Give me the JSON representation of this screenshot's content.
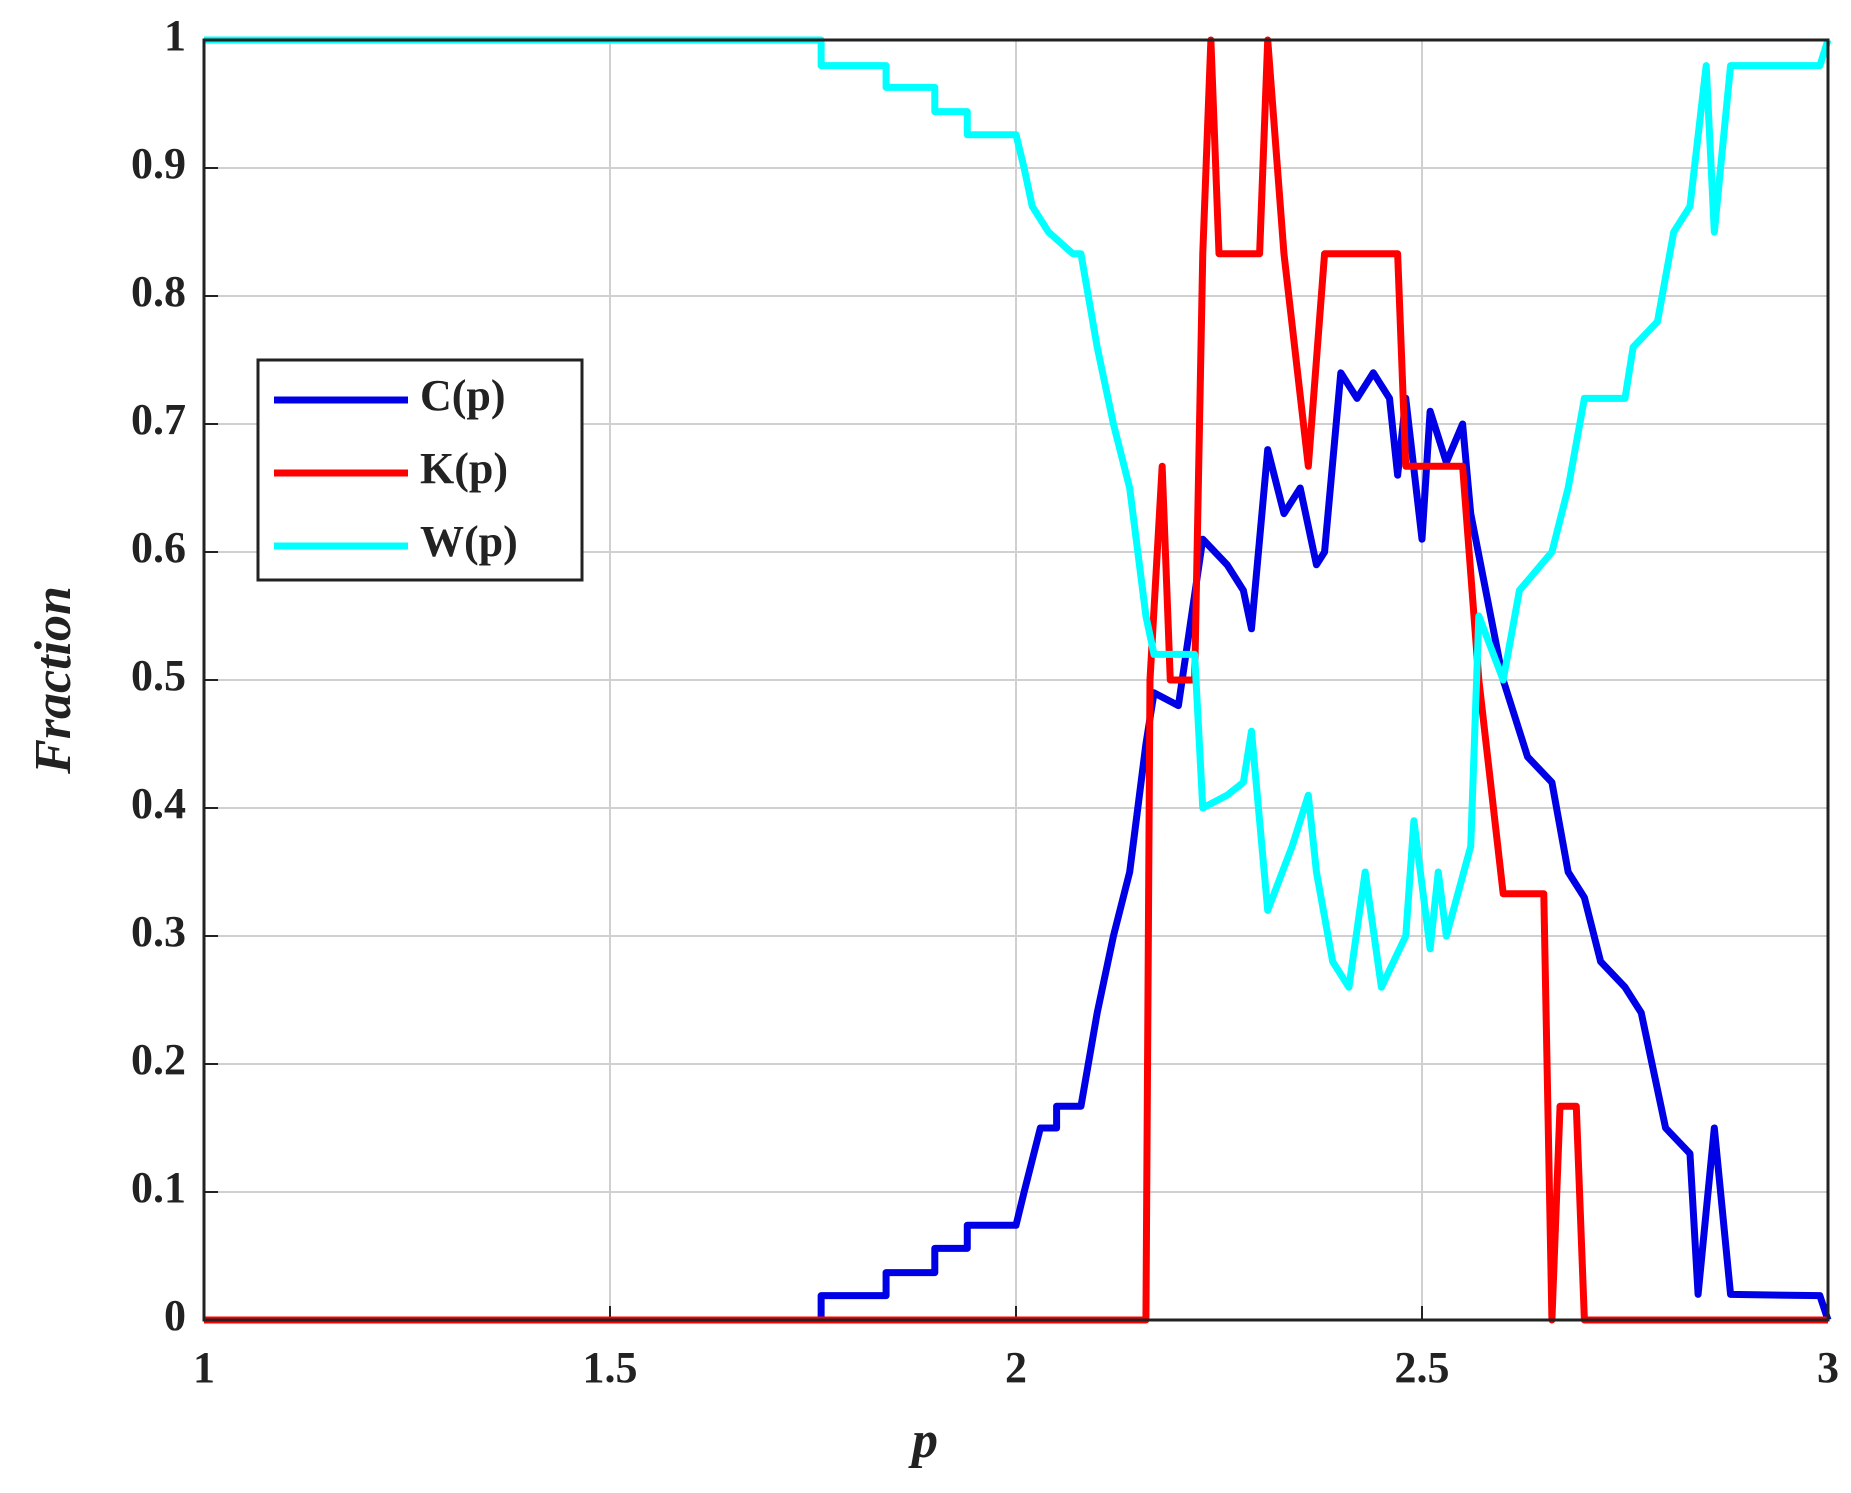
{
  "chart_data": {
    "type": "line",
    "xlabel": "p",
    "ylabel": "Fraction",
    "xlim": [
      1,
      3
    ],
    "xticks": [
      1,
      1.5,
      2,
      2.5,
      3
    ],
    "ylim": [
      0,
      1
    ],
    "yticks": [
      0,
      0.1,
      0.2,
      0.3,
      0.4,
      0.5,
      0.6,
      0.7,
      0.8,
      0.9,
      1
    ],
    "grid": true,
    "legend": "upper left",
    "series": [
      {
        "name": "C(p)",
        "color": "#0000e6",
        "x": [
          1,
          1.76,
          1.76,
          1.84,
          1.84,
          1.9,
          1.9,
          1.94,
          1.94,
          2.0,
          2.01,
          2.03,
          2.05,
          2.05,
          2.08,
          2.1,
          2.12,
          2.14,
          2.16,
          2.17,
          2.2,
          2.23,
          2.26,
          2.28,
          2.29,
          2.31,
          2.33,
          2.35,
          2.37,
          2.38,
          2.4,
          2.42,
          2.44,
          2.46,
          2.47,
          2.48,
          2.5,
          2.51,
          2.53,
          2.55,
          2.56,
          2.6,
          2.63,
          2.66,
          2.68,
          2.7,
          2.72,
          2.75,
          2.77,
          2.8,
          2.83,
          2.84,
          2.86,
          2.88,
          2.99,
          3.0
        ],
        "values": [
          0,
          0,
          0.019,
          0.019,
          0.037,
          0.037,
          0.056,
          0.056,
          0.074,
          0.074,
          0.1,
          0.15,
          0.15,
          0.167,
          0.167,
          0.24,
          0.3,
          0.35,
          0.45,
          0.49,
          0.48,
          0.61,
          0.59,
          0.57,
          0.54,
          0.68,
          0.63,
          0.65,
          0.59,
          0.6,
          0.74,
          0.72,
          0.74,
          0.72,
          0.66,
          0.72,
          0.61,
          0.71,
          0.67,
          0.7,
          0.63,
          0.5,
          0.44,
          0.42,
          0.35,
          0.33,
          0.28,
          0.26,
          0.24,
          0.15,
          0.13,
          0.02,
          0.15,
          0.02,
          0.019,
          0
        ]
      },
      {
        "name": "K(p)",
        "color": "#ff0000",
        "x": [
          1,
          2.16,
          2.165,
          2.18,
          2.19,
          2.22,
          2.23,
          2.24,
          2.25,
          2.3,
          2.31,
          2.33,
          2.36,
          2.38,
          2.47,
          2.48,
          2.55,
          2.57,
          2.6,
          2.65,
          2.66,
          2.67,
          2.69,
          2.7,
          3
        ],
        "values": [
          0,
          0,
          0.5,
          0.667,
          0.5,
          0.5,
          0.833,
          1,
          0.833,
          0.833,
          1,
          0.833,
          0.667,
          0.833,
          0.833,
          0.667,
          0.667,
          0.5,
          0.333,
          0.333,
          0,
          0.167,
          0.167,
          0,
          0
        ]
      },
      {
        "name": "W(p)",
        "color": "#00ffff",
        "x": [
          1,
          1.76,
          1.76,
          1.84,
          1.84,
          1.9,
          1.9,
          1.94,
          1.94,
          2.0,
          2.01,
          2.02,
          2.04,
          2.07,
          2.08,
          2.1,
          2.12,
          2.14,
          2.16,
          2.17,
          2.22,
          2.23,
          2.26,
          2.28,
          2.29,
          2.31,
          2.34,
          2.36,
          2.37,
          2.39,
          2.41,
          2.43,
          2.45,
          2.48,
          2.49,
          2.51,
          2.52,
          2.53,
          2.56,
          2.57,
          2.6,
          2.62,
          2.66,
          2.68,
          2.7,
          2.75,
          2.76,
          2.79,
          2.81,
          2.83,
          2.85,
          2.86,
          2.88,
          2.99,
          3.0
        ],
        "values": [
          1,
          1,
          0.98,
          0.98,
          0.963,
          0.963,
          0.944,
          0.944,
          0.926,
          0.926,
          0.9,
          0.87,
          0.85,
          0.833,
          0.833,
          0.76,
          0.7,
          0.65,
          0.55,
          0.52,
          0.52,
          0.4,
          0.41,
          0.42,
          0.46,
          0.32,
          0.37,
          0.41,
          0.35,
          0.28,
          0.26,
          0.35,
          0.26,
          0.3,
          0.39,
          0.29,
          0.35,
          0.3,
          0.37,
          0.55,
          0.5,
          0.57,
          0.6,
          0.65,
          0.72,
          0.72,
          0.76,
          0.78,
          0.85,
          0.87,
          0.98,
          0.85,
          0.98,
          0.98,
          1
        ]
      }
    ]
  }
}
